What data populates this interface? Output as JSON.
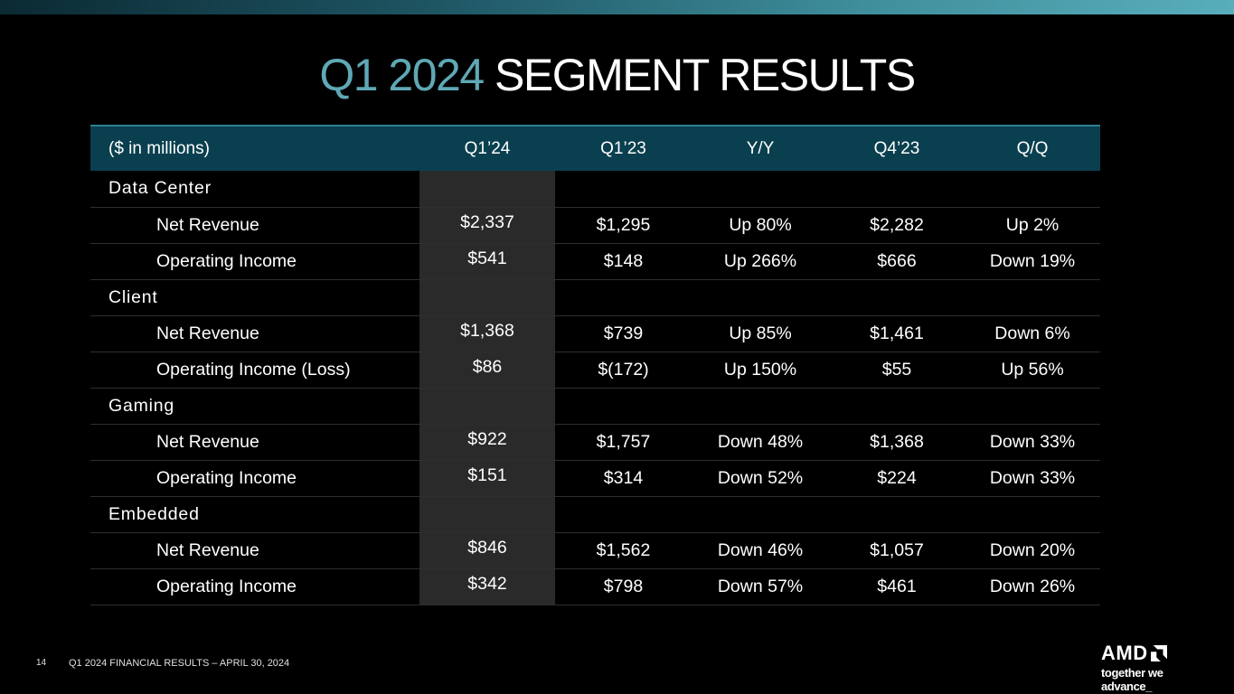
{
  "slide": {
    "title_accent": "Q1 2024",
    "title_rest": "SEGMENT RESULTS",
    "page_number": "14",
    "footer": "Q1 2024 FINANCIAL RESULTS – APRIL 30, 2024",
    "logo_text": "AMD",
    "tagline": "together we advance_"
  },
  "table": {
    "headers": [
      "($ in millions)",
      "Q1’24",
      "Q1’23",
      "Y/Y",
      "Q4’23",
      "Q/Q"
    ],
    "rows": [
      {
        "label": "Data Center",
        "section": true,
        "cells": [
          "",
          "",
          "",
          "",
          ""
        ]
      },
      {
        "label": "Net Revenue",
        "section": false,
        "cells": [
          "$2,337",
          "$1,295",
          "Up 80%",
          "$2,282",
          "Up 2%"
        ]
      },
      {
        "label": "Operating Income",
        "section": false,
        "cells": [
          "$541",
          "$148",
          "Up 266%",
          "$666",
          "Down 19%"
        ]
      },
      {
        "label": "Client",
        "section": true,
        "cells": [
          "",
          "",
          "",
          "",
          ""
        ]
      },
      {
        "label": "Net Revenue",
        "section": false,
        "cells": [
          "$1,368",
          "$739",
          "Up 85%",
          "$1,461",
          "Down 6%"
        ]
      },
      {
        "label": "Operating Income (Loss)",
        "section": false,
        "cells": [
          "$86",
          "$(172)",
          "Up 150%",
          "$55",
          "Up 56%"
        ]
      },
      {
        "label": "Gaming",
        "section": true,
        "cells": [
          "",
          "",
          "",
          "",
          ""
        ]
      },
      {
        "label": "Net Revenue",
        "section": false,
        "cells": [
          "$922",
          "$1,757",
          "Down 48%",
          "$1,368",
          "Down 33%"
        ]
      },
      {
        "label": "Operating Income",
        "section": false,
        "cells": [
          "$151",
          "$314",
          "Down 52%",
          "$224",
          "Down 33%"
        ]
      },
      {
        "label": "Embedded",
        "section": true,
        "cells": [
          "",
          "",
          "",
          "",
          ""
        ]
      },
      {
        "label": "Net Revenue",
        "section": false,
        "cells": [
          "$846",
          "$1,562",
          "Down 46%",
          "$1,057",
          "Down 20%"
        ]
      },
      {
        "label": "Operating Income",
        "section": false,
        "cells": [
          "$342",
          "$798",
          "Down 57%",
          "$461",
          "Down 26%"
        ]
      }
    ]
  },
  "colors": {
    "accent": "#5fa8b5",
    "header_bg": "#0a3f4f",
    "highlight_column": "#2a2a2a"
  }
}
